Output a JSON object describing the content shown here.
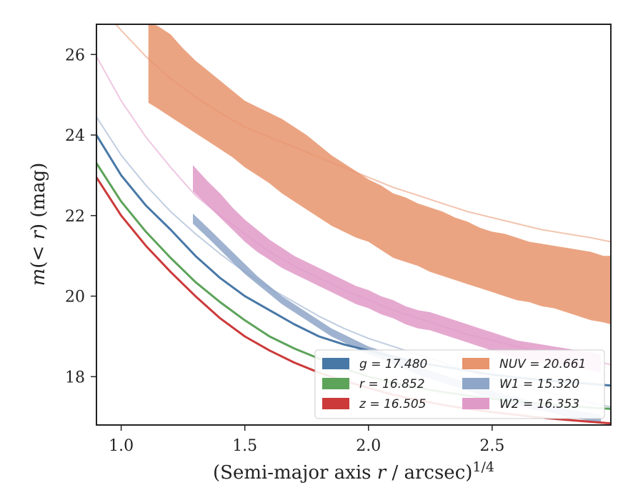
{
  "chart_data": {
    "type": "line",
    "xlabel": "(Semi-major axis r / arcsec)^1/4",
    "ylabel": "m(< r) (mag)",
    "xlim": [
      0.9,
      2.98
    ],
    "ylim": [
      26.75,
      16.8
    ],
    "x_ticks": [
      "1.0",
      "1.5",
      "2.0",
      "2.5"
    ],
    "x_tick_values": [
      1.0,
      1.5,
      2.0,
      2.5
    ],
    "y_ticks": [
      "18",
      "20",
      "22",
      "24",
      "26"
    ],
    "y_tick_values": [
      18,
      20,
      22,
      24,
      26
    ],
    "grid": false,
    "legend_position": "lower-right",
    "series": [
      {
        "name": "g = 17.480",
        "color": "#4878a6",
        "band": false,
        "x": [
          0.9,
          1.0,
          1.1,
          1.2,
          1.3,
          1.4,
          1.5,
          1.6,
          1.7,
          1.8,
          1.9,
          2.0,
          2.1,
          2.2,
          2.3,
          2.4,
          2.5,
          2.6,
          2.7,
          2.8,
          2.9,
          2.98
        ],
        "y": [
          24.0,
          23.0,
          22.25,
          21.65,
          21.0,
          20.45,
          20.0,
          19.65,
          19.3,
          19.0,
          18.8,
          18.65,
          18.5,
          18.35,
          18.25,
          18.15,
          18.05,
          17.98,
          17.92,
          17.87,
          17.82,
          17.78
        ]
      },
      {
        "name": "r = 16.852",
        "color": "#5da35a",
        "band": false,
        "x": [
          0.9,
          1.0,
          1.1,
          1.2,
          1.3,
          1.4,
          1.5,
          1.6,
          1.7,
          1.8,
          1.9,
          2.0,
          2.1,
          2.2,
          2.3,
          2.4,
          2.5,
          2.6,
          2.7,
          2.8,
          2.9,
          2.98
        ],
        "y": [
          23.3,
          22.35,
          21.6,
          20.95,
          20.35,
          19.85,
          19.4,
          19.0,
          18.7,
          18.45,
          18.2,
          18.0,
          17.85,
          17.72,
          17.62,
          17.53,
          17.45,
          17.38,
          17.33,
          17.28,
          17.23,
          17.2
        ]
      },
      {
        "name": "z = 16.505",
        "color": "#cc3a3a",
        "band": false,
        "x": [
          0.9,
          1.0,
          1.1,
          1.2,
          1.3,
          1.4,
          1.5,
          1.6,
          1.7,
          1.8,
          1.9,
          2.0,
          2.1,
          2.2,
          2.3,
          2.4,
          2.5,
          2.6,
          2.7,
          2.8,
          2.9,
          2.98
        ],
        "y": [
          22.95,
          22.0,
          21.25,
          20.6,
          20.0,
          19.45,
          19.0,
          18.65,
          18.35,
          18.1,
          17.9,
          17.72,
          17.55,
          17.42,
          17.3,
          17.2,
          17.12,
          17.05,
          16.98,
          16.93,
          16.88,
          16.84
        ]
      },
      {
        "name": "NUV = 20.661",
        "color": "#e8946c",
        "band": true,
        "x": [
          0.9,
          1.0,
          1.1,
          1.2,
          1.3,
          1.4,
          1.5,
          1.6,
          1.7,
          1.8,
          1.9,
          2.0,
          2.1,
          2.2,
          2.3,
          2.4,
          2.5,
          2.6,
          2.7,
          2.8,
          2.9,
          2.98
        ],
        "y": [
          27.3,
          26.6,
          25.95,
          25.4,
          24.95,
          24.55,
          24.2,
          23.95,
          23.7,
          23.45,
          23.2,
          22.95,
          22.7,
          22.5,
          22.3,
          22.1,
          21.95,
          21.8,
          21.65,
          21.55,
          21.45,
          21.35
        ],
        "band_x": [
          1.11,
          1.15,
          1.2,
          1.25,
          1.3,
          1.35,
          1.4,
          1.45,
          1.5,
          1.55,
          1.6,
          1.65,
          1.7,
          1.75,
          1.8,
          1.85,
          1.9,
          1.95,
          2.0,
          2.05,
          2.1,
          2.15,
          2.2,
          2.25,
          2.3,
          2.35,
          2.4,
          2.45,
          2.5,
          2.55,
          2.6,
          2.65,
          2.7,
          2.75,
          2.8,
          2.85,
          2.9,
          2.95,
          2.98
        ],
        "band_upper": [
          24.8,
          24.65,
          24.45,
          24.25,
          24.05,
          23.85,
          23.65,
          23.45,
          23.2,
          23.0,
          22.8,
          22.55,
          22.35,
          22.15,
          21.95,
          21.75,
          21.6,
          21.45,
          21.35,
          21.15,
          20.95,
          20.85,
          20.75,
          20.6,
          20.5,
          20.4,
          20.3,
          20.2,
          20.1,
          20.0,
          19.9,
          19.85,
          19.75,
          19.7,
          19.6,
          19.5,
          19.4,
          19.35,
          19.3
        ],
        "band_lower": [
          26.8,
          26.7,
          26.5,
          26.15,
          25.85,
          25.6,
          25.35,
          25.1,
          24.85,
          24.7,
          24.55,
          24.4,
          24.2,
          24.0,
          23.75,
          23.5,
          23.3,
          23.1,
          22.9,
          22.75,
          22.55,
          22.45,
          22.3,
          22.2,
          22.1,
          21.95,
          21.85,
          21.7,
          21.6,
          21.55,
          21.45,
          21.35,
          21.3,
          21.25,
          21.2,
          21.15,
          21.1,
          21.0,
          21.0
        ]
      },
      {
        "name": "W1 = 15.320",
        "color": "#8ea6c8",
        "band": true,
        "x": [
          0.9,
          1.0,
          1.1,
          1.2,
          1.3,
          1.4,
          1.5,
          1.6,
          1.7,
          1.8,
          1.9,
          2.0,
          2.1,
          2.2,
          2.3,
          2.4,
          2.5,
          2.6,
          2.7,
          2.8,
          2.9,
          2.98
        ],
        "y": [
          24.45,
          23.5,
          22.75,
          22.1,
          21.55,
          21.05,
          20.6,
          20.2,
          19.85,
          19.5,
          19.2,
          18.95,
          18.75,
          18.55,
          18.35,
          18.15,
          17.95,
          17.8,
          17.65,
          17.5,
          17.35,
          17.25
        ],
        "band_x": [
          1.29,
          1.35,
          1.4,
          1.45,
          1.5,
          1.55,
          1.6,
          1.65,
          1.7,
          1.75,
          1.8,
          1.85,
          1.9,
          1.95,
          2.0,
          2.05,
          2.1,
          2.15,
          2.2,
          2.25,
          2.3,
          2.35,
          2.4,
          2.45,
          2.5,
          2.55,
          2.6,
          2.65,
          2.7,
          2.75,
          2.8,
          2.85,
          2.9,
          2.94
        ],
        "band_upper": [
          21.8,
          21.45,
          21.15,
          20.85,
          20.55,
          20.3,
          20.05,
          19.8,
          19.6,
          19.4,
          19.2,
          19.0,
          18.85,
          18.7,
          18.55,
          18.45,
          18.3,
          18.2,
          18.05,
          17.95,
          17.85,
          17.75,
          17.65,
          17.55,
          17.45,
          17.35,
          17.3,
          17.2,
          17.15,
          17.1,
          17.0,
          16.95,
          16.9,
          16.85
        ],
        "band_lower": [
          22.05,
          21.7,
          21.4,
          21.1,
          20.8,
          20.5,
          20.25,
          20.0,
          19.8,
          19.6,
          19.4,
          19.2,
          19.05,
          18.9,
          18.75,
          18.65,
          18.5,
          18.4,
          18.25,
          18.15,
          18.05,
          17.95,
          17.85,
          17.75,
          17.65,
          17.55,
          17.5,
          17.4,
          17.35,
          17.3,
          17.2,
          17.15,
          17.1,
          17.05
        ]
      },
      {
        "name": "W2 = 16.353",
        "color": "#e09ac8",
        "band": true,
        "x": [
          0.9,
          1.0,
          1.1,
          1.2,
          1.3,
          1.4,
          1.5,
          1.6,
          1.7,
          1.8,
          1.9,
          2.0,
          2.1,
          2.2,
          2.3,
          2.4,
          2.5,
          2.6,
          2.7,
          2.8,
          2.9,
          2.98
        ],
        "y": [
          25.95,
          24.85,
          23.95,
          23.2,
          22.5,
          22.0,
          21.55,
          21.1,
          20.75,
          20.45,
          20.15,
          19.9,
          19.65,
          19.45,
          19.25,
          19.05,
          18.9,
          18.75,
          18.6,
          18.5,
          18.4,
          18.3
        ],
        "band_x": [
          1.29,
          1.35,
          1.4,
          1.45,
          1.5,
          1.55,
          1.6,
          1.65,
          1.7,
          1.75,
          1.8,
          1.85,
          1.9,
          1.95,
          2.0,
          2.05,
          2.1,
          2.15,
          2.2,
          2.25,
          2.3,
          2.35,
          2.4,
          2.45,
          2.5,
          2.55,
          2.6,
          2.65,
          2.7,
          2.75,
          2.8,
          2.85,
          2.9,
          2.94
        ],
        "band_upper": [
          22.6,
          22.25,
          21.95,
          21.65,
          21.35,
          21.1,
          20.9,
          20.7,
          20.55,
          20.4,
          20.25,
          20.1,
          19.95,
          19.8,
          19.7,
          19.55,
          19.45,
          19.3,
          19.2,
          19.15,
          19.05,
          18.95,
          18.85,
          18.75,
          18.65,
          18.55,
          18.45,
          18.4,
          18.35,
          18.3,
          18.25,
          18.2,
          18.15,
          18.1
        ],
        "band_lower": [
          23.25,
          22.85,
          22.55,
          22.2,
          21.9,
          21.65,
          21.4,
          21.2,
          21.0,
          20.85,
          20.7,
          20.55,
          20.4,
          20.25,
          20.15,
          20.0,
          19.9,
          19.75,
          19.65,
          19.6,
          19.5,
          19.4,
          19.3,
          19.2,
          19.1,
          19.0,
          18.9,
          18.85,
          18.8,
          18.75,
          18.7,
          18.65,
          18.6,
          18.55
        ]
      }
    ]
  }
}
